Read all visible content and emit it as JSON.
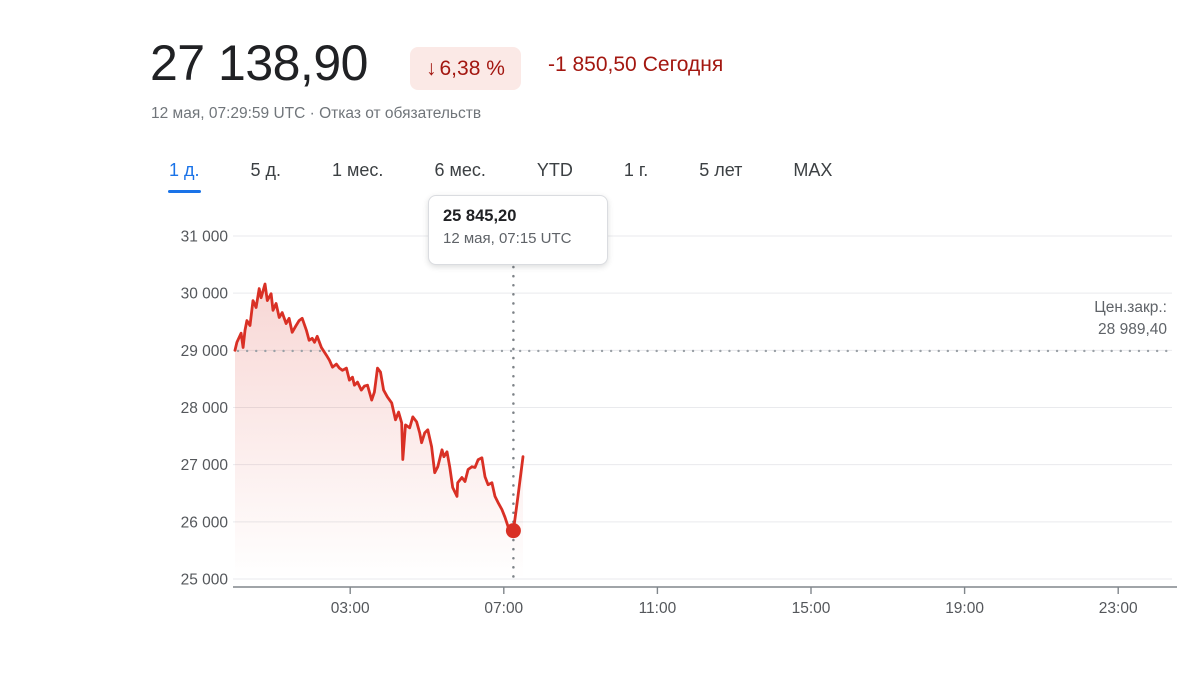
{
  "header": {
    "price": "27 138,90",
    "change_badge": {
      "arrow": "↓",
      "percent": "6,38 %"
    },
    "change_abs": "-1 850,50",
    "change_period": "Сегодня",
    "subtitle": "12 мая, 07:29:59 UTC · Отказ от обязательств"
  },
  "tabs": {
    "items": [
      {
        "label": "1 д.",
        "active": true
      },
      {
        "label": "5 д.",
        "active": false
      },
      {
        "label": "1 мес.",
        "active": false
      },
      {
        "label": "6 мес.",
        "active": false
      },
      {
        "label": "YTD",
        "active": false
      },
      {
        "label": "1 г.",
        "active": false
      },
      {
        "label": "5 лет",
        "active": false
      },
      {
        "label": "MAX",
        "active": false
      }
    ]
  },
  "tooltip": {
    "value": "25 845,20",
    "time": "12 мая, 07:15 UTC"
  },
  "prev_close": {
    "label": "Цен.закр.:",
    "value": "28 989,40"
  },
  "colors": {
    "line_red": "#d93025",
    "dark_red": "#a31710",
    "badge_bg": "#fbe9e6",
    "active_blue": "#1a73e8",
    "grid": "#e9eaed",
    "axis": "#80868b",
    "dotted": "#9aa0a6"
  },
  "chart_data": {
    "type": "line",
    "title": "",
    "xlabel": "",
    "ylabel": "",
    "x_unit": "hours UTC",
    "ylim": [
      25000,
      31000
    ],
    "xlim": [
      0,
      24.4
    ],
    "grid": true,
    "prev_close_value": 28989.4,
    "last_value": 27138.9,
    "marker": {
      "x": 7.25,
      "y": 25845.2
    },
    "crosshair_x": 7.25,
    "y_ticks": [
      {
        "value": 31000,
        "label": "31 000"
      },
      {
        "value": 30000,
        "label": "30 000"
      },
      {
        "value": 29000,
        "label": "29 000"
      },
      {
        "value": 28000,
        "label": "28 000"
      },
      {
        "value": 27000,
        "label": "27 000"
      },
      {
        "value": 26000,
        "label": "26 000"
      },
      {
        "value": 25000,
        "label": "25 000"
      }
    ],
    "x_ticks": [
      {
        "value": 3,
        "label": "03:00"
      },
      {
        "value": 7,
        "label": "07:00"
      },
      {
        "value": 11,
        "label": "11:00"
      },
      {
        "value": 15,
        "label": "15:00"
      },
      {
        "value": 19,
        "label": "19:00"
      },
      {
        "value": 23,
        "label": "23:00"
      }
    ],
    "x": [
      0,
      0.05,
      0.16,
      0.21,
      0.26,
      0.31,
      0.39,
      0.47,
      0.55,
      0.63,
      0.68,
      0.78,
      0.84,
      0.94,
      0.99,
      1.07,
      1.15,
      1.23,
      1.33,
      1.41,
      1.49,
      1.59,
      1.67,
      1.75,
      1.86,
      1.93,
      2.01,
      2.07,
      2.14,
      2.25,
      2.38,
      2.46,
      2.54,
      2.64,
      2.72,
      2.8,
      2.9,
      2.98,
      3.06,
      3.11,
      3.19,
      3.29,
      3.37,
      3.45,
      3.56,
      3.63,
      3.71,
      3.79,
      3.87,
      3.97,
      4.08,
      4.18,
      4.26,
      4.34,
      4.37,
      4.44,
      4.55,
      4.63,
      4.73,
      4.81,
      4.86,
      4.94,
      5.02,
      5.12,
      5.2,
      5.28,
      5.39,
      5.44,
      5.52,
      5.59,
      5.67,
      5.78,
      5.8,
      5.91,
      5.99,
      6.07,
      6.17,
      6.25,
      6.33,
      6.43,
      6.51,
      6.59,
      6.69,
      6.77,
      6.85,
      6.95,
      7.03,
      7.11,
      7.25,
      7.37,
      7.5
    ],
    "y": [
      29000,
      29140,
      29300,
      29050,
      29350,
      29520,
      29435,
      29870,
      29750,
      30080,
      29920,
      30160,
      29870,
      29990,
      29700,
      29820,
      29575,
      29660,
      29470,
      29560,
      29315,
      29435,
      29520,
      29560,
      29350,
      29175,
      29210,
      29140,
      29245,
      29050,
      28915,
      28825,
      28705,
      28760,
      28690,
      28650,
      28690,
      28480,
      28530,
      28390,
      28445,
      28305,
      28375,
      28390,
      28130,
      28270,
      28690,
      28620,
      28305,
      28185,
      28080,
      27785,
      27920,
      27730,
      27090,
      27695,
      27645,
      27835,
      27750,
      27555,
      27385,
      27555,
      27610,
      27315,
      26860,
      26965,
      27260,
      27140,
      27225,
      26965,
      26600,
      26445,
      26685,
      26775,
      26705,
      26915,
      26965,
      26950,
      27085,
      27120,
      26790,
      26650,
      26685,
      26445,
      26340,
      26215,
      26080,
      25920,
      25845.2,
      26450,
      27138.9
    ]
  }
}
